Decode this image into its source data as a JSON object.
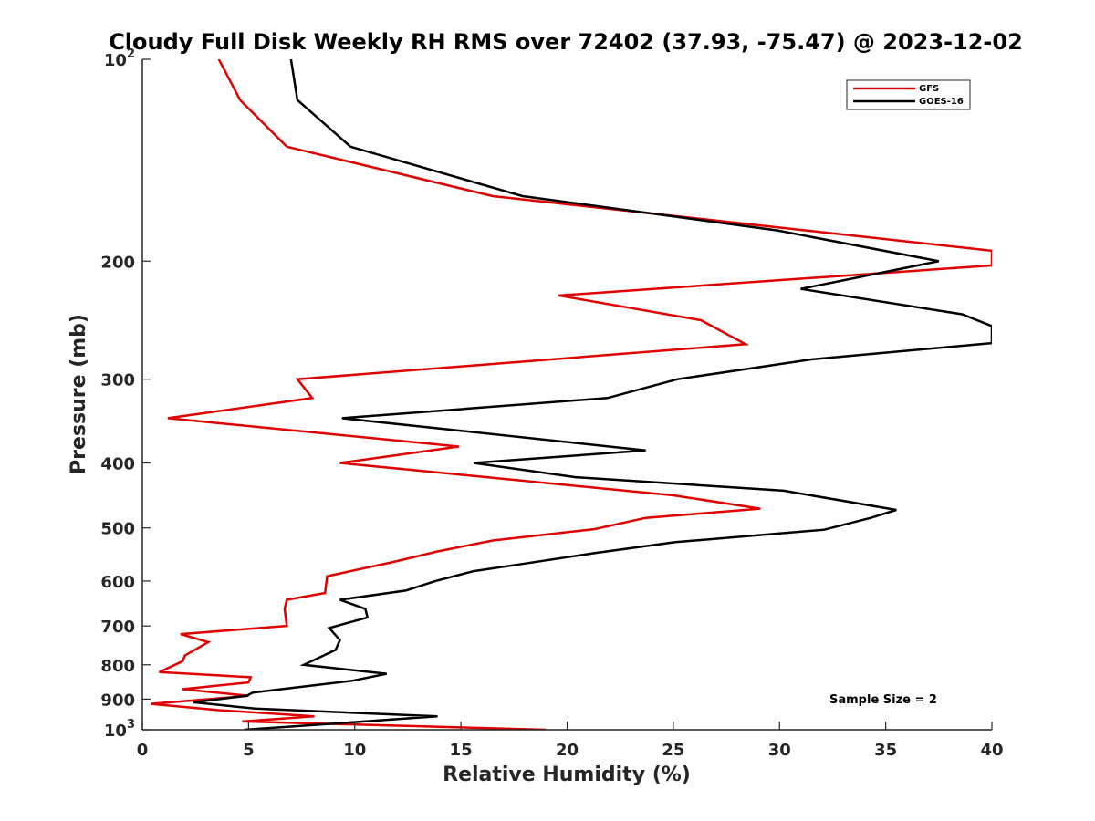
{
  "chart_data": {
    "type": "line",
    "title": "Cloudy Full Disk Weekly RH RMS over 72402 (37.93, -75.47) @ 2023-12-02",
    "xlabel": "Relative Humidity (%)",
    "ylabel": "Pressure (mb)",
    "xlim": [
      0,
      40
    ],
    "ylim": [
      100,
      1000
    ],
    "y_scale": "log",
    "y_reversed": true,
    "x_ticks": [
      "0",
      "5",
      "10",
      "15",
      "20",
      "25",
      "30",
      "35",
      "40"
    ],
    "y_ticks": [
      {
        "value": 100,
        "base": "10",
        "exp": "2"
      },
      {
        "value": 200,
        "label": "200"
      },
      {
        "value": 300,
        "label": "300"
      },
      {
        "value": 400,
        "label": "400"
      },
      {
        "value": 500,
        "label": "500"
      },
      {
        "value": 600,
        "label": "600"
      },
      {
        "value": 700,
        "label": "700"
      },
      {
        "value": 800,
        "label": "800"
      },
      {
        "value": 900,
        "label": "900"
      },
      {
        "value": 1000,
        "base": "10",
        "exp": "3"
      }
    ],
    "grid": false,
    "legend_position": "top-right",
    "annotation": "Sample Size = 2",
    "series": [
      {
        "name": "GFS",
        "color": "#e00000",
        "points": [
          [
            3.6,
            100
          ],
          [
            4.6,
            115
          ],
          [
            6.8,
            135
          ],
          [
            16.5,
            160
          ],
          [
            40,
            193
          ],
          [
            40,
            203
          ],
          [
            19.6,
            225
          ],
          [
            26.3,
            245
          ],
          [
            28.4,
            266
          ],
          [
            7.3,
            300
          ],
          [
            8.0,
            320
          ],
          [
            1.2,
            343
          ],
          [
            14.9,
            378
          ],
          [
            9.3,
            400
          ],
          [
            25.0,
            447
          ],
          [
            29.1,
            468
          ],
          [
            23.7,
            483
          ],
          [
            21.3,
            502
          ],
          [
            16.5,
            522
          ],
          [
            13.9,
            542
          ],
          [
            11.8,
            562
          ],
          [
            8.7,
            590
          ],
          [
            8.6,
            625
          ],
          [
            6.8,
            640
          ],
          [
            6.7,
            660
          ],
          [
            6.8,
            700
          ],
          [
            1.8,
            720
          ],
          [
            3.1,
            740
          ],
          [
            2.0,
            775
          ],
          [
            1.9,
            790
          ],
          [
            0.8,
            820
          ],
          [
            5.1,
            835
          ],
          [
            5.0,
            850
          ],
          [
            1.9,
            870
          ],
          [
            5.0,
            890
          ],
          [
            0.4,
            915
          ],
          [
            3.6,
            935
          ],
          [
            8.1,
            955
          ],
          [
            4.7,
            972
          ],
          [
            19.0,
            1000
          ]
        ]
      },
      {
        "name": "GOES-16",
        "color": "#000000",
        "points": [
          [
            7.0,
            100
          ],
          [
            7.3,
            115
          ],
          [
            9.8,
            135
          ],
          [
            17.9,
            160
          ],
          [
            29.9,
            180
          ],
          [
            37.5,
            200
          ],
          [
            31.0,
            220
          ],
          [
            38.6,
            240
          ],
          [
            40,
            250
          ],
          [
            40,
            265
          ],
          [
            31.6,
            280
          ],
          [
            25.2,
            300
          ],
          [
            21.9,
            320
          ],
          [
            9.4,
            343
          ],
          [
            23.7,
            383
          ],
          [
            15.6,
            400
          ],
          [
            20.4,
            420
          ],
          [
            30.2,
            440
          ],
          [
            35.5,
            470
          ],
          [
            34.3,
            483
          ],
          [
            32.1,
            503
          ],
          [
            25.1,
            525
          ],
          [
            21.3,
            545
          ],
          [
            18.0,
            565
          ],
          [
            15.6,
            580
          ],
          [
            13.8,
            600
          ],
          [
            12.4,
            620
          ],
          [
            9.3,
            640
          ],
          [
            10.5,
            660
          ],
          [
            10.6,
            680
          ],
          [
            8.8,
            705
          ],
          [
            9.3,
            735
          ],
          [
            9.1,
            760
          ],
          [
            7.6,
            800
          ],
          [
            11.5,
            825
          ],
          [
            9.9,
            845
          ],
          [
            5.2,
            880
          ],
          [
            4.9,
            890
          ],
          [
            2.4,
            910
          ],
          [
            5.3,
            930
          ],
          [
            13.9,
            955
          ],
          [
            4.8,
            1000
          ]
        ]
      }
    ]
  }
}
